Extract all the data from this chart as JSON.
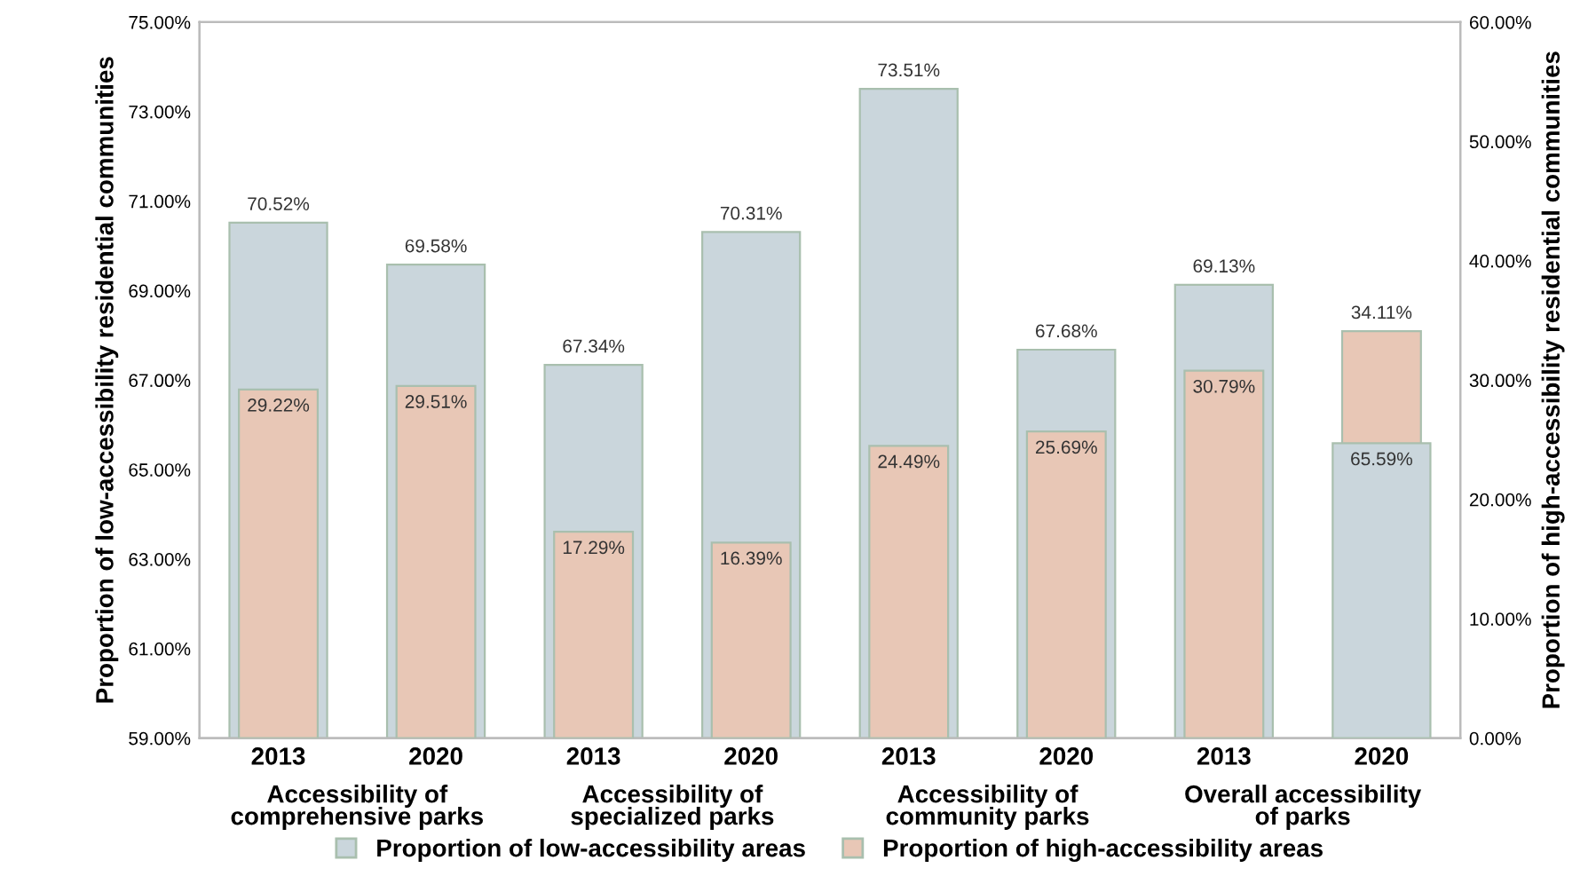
{
  "chart_data": {
    "type": "bar",
    "ylabel": "Proportion of low-accessibility residential communities",
    "y2label": "Proportion of high-accessibility residential communities",
    "categories": [
      "2013",
      "2020",
      "2013",
      "2020",
      "2013",
      "2020",
      "2013",
      "2020"
    ],
    "annotations": [
      "Accessibility of\ncomprehensive parks",
      "Accessibility of\nspecialized parks",
      "Accessibility of\ncommunity parks",
      "Overall accessibility\nof parks"
    ],
    "series": [
      {
        "name": "Proportion of low-accessibility areas",
        "color": "#cad6dc",
        "values": [
          70.52,
          69.58,
          67.34,
          70.31,
          73.51,
          67.68,
          69.13,
          65.59
        ],
        "value_labels": [
          "70.52%",
          "69.58%",
          "67.34%",
          "70.31%",
          "73.51%",
          "67.68%",
          "69.13%",
          "65.59%"
        ]
      },
      {
        "name": "Proportion of high-accessibility areas",
        "color": "#e8c7b6",
        "axis": "y2",
        "values": [
          29.22,
          29.51,
          17.29,
          16.39,
          24.49,
          25.69,
          30.79,
          34.11
        ],
        "value_labels": [
          "29.22%",
          "29.51%",
          "17.29%",
          "16.39%",
          "24.49%",
          "25.69%",
          "30.79%",
          "34.11%"
        ]
      }
    ],
    "ylim": [
      59,
      75
    ],
    "yticks": [
      {
        "value": 59,
        "label": "59.00%"
      },
      {
        "value": 61,
        "label": "61.00%"
      },
      {
        "value": 63,
        "label": "63.00%"
      },
      {
        "value": 65,
        "label": "65.00%"
      },
      {
        "value": 67,
        "label": "67.00%"
      },
      {
        "value": 69,
        "label": "69.00%"
      },
      {
        "value": 71,
        "label": "71.00%"
      },
      {
        "value": 73,
        "label": "73.00%"
      },
      {
        "value": 75,
        "label": "75.00%"
      }
    ],
    "y2lim": [
      0,
      60
    ],
    "y2ticks": [
      {
        "value": 0,
        "label": "0.00%"
      },
      {
        "value": 10,
        "label": "10.00%"
      },
      {
        "value": 20,
        "label": "20.00%"
      },
      {
        "value": 30,
        "label": "30.00%"
      },
      {
        "value": 40,
        "label": "40.00%"
      },
      {
        "value": 50,
        "label": "50.00%"
      },
      {
        "value": 60,
        "label": "60.00%"
      }
    ],
    "grid": false,
    "legend": "bottom"
  }
}
